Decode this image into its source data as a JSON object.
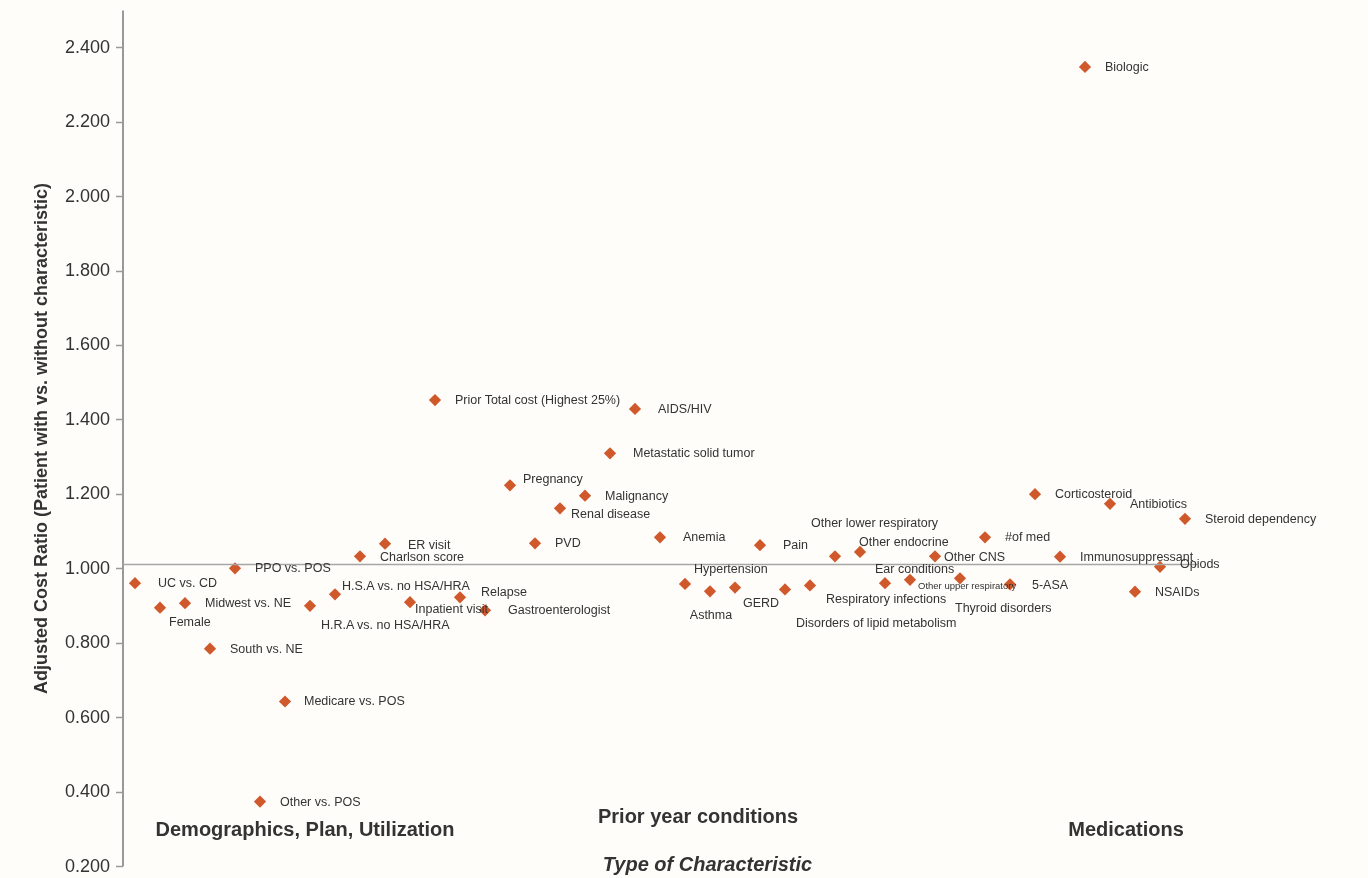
{
  "chart_data": {
    "type": "scatter",
    "xlabel": "Type of Characteristic",
    "ylabel": "Adjusted Cost Ratio (Patient with vs. without characteristic)",
    "categories": [
      null,
      null,
      null,
      null,
      null,
      null,
      null,
      null,
      null,
      null,
      null,
      null,
      null,
      null,
      null,
      null,
      null,
      null,
      null,
      null,
      null,
      null,
      null,
      null,
      null,
      null,
      null,
      null,
      null,
      null,
      null,
      null,
      null,
      null,
      null,
      null,
      null,
      null,
      null,
      null,
      null,
      null,
      null
    ],
    "values": [
      0.96,
      0.894,
      0.906,
      0.784,
      1.0,
      0.373,
      0.642,
      0.899,
      0.93,
      1.032,
      1.066,
      0.909,
      1.452,
      0.922,
      0.887,
      1.223,
      1.067,
      1.161,
      1.195,
      1.309,
      1.428,
      1.083,
      0.958,
      0.938,
      0.948,
      1.062,
      0.943,
      0.954,
      1.032,
      1.044,
      0.96,
      0.969,
      1.032,
      0.973,
      1.083,
      0.957,
      1.199,
      1.031,
      2.347,
      1.173,
      0.937,
      1.004,
      1.133
    ],
    "color": "#d0592c",
    "marker": "diamond",
    "grid": false,
    "tick_labels": "y",
    "ylim": [
      0.2,
      2.5
    ],
    "yticks": [
      {
        "value": 0.2,
        "label": "0.200"
      },
      {
        "value": 0.4,
        "label": "0.400"
      },
      {
        "value": 0.6,
        "label": "0.600"
      },
      {
        "value": 0.8,
        "label": "0.800"
      },
      {
        "value": 1.0,
        "label": "1.000"
      },
      {
        "value": 1.2,
        "label": "1.200"
      },
      {
        "value": 1.4,
        "label": "1.400"
      },
      {
        "value": 1.6,
        "label": "1.600"
      },
      {
        "value": 1.8,
        "label": "1.800"
      },
      {
        "value": 2.0,
        "label": "2.000"
      },
      {
        "value": 2.2,
        "label": "2.200"
      },
      {
        "value": 2.4,
        "label": "2.400"
      }
    ],
    "ref_lines": [
      {
        "axis": "y",
        "value": 1.01,
        "color": "#a6a6a6"
      }
    ],
    "annotations": [
      "UC vs. CD",
      "Female",
      "Midwest vs. NE",
      "South vs. NE",
      "PPO vs. POS",
      "Other vs. POS",
      "Medicare vs. POS",
      "H.R.A vs. no HSA/HRA",
      "H.S.A vs. no HSA/HRA",
      "Charlson score",
      "ER visit",
      "Inpatient visit",
      "Prior Total cost (Highest 25%)",
      "Relapse",
      "Gastroenterologist",
      "Pregnancy",
      "PVD",
      "Renal disease",
      "Malignancy",
      "Metastatic solid tumor",
      "AIDS/HIV",
      "Anemia",
      "Hypertension",
      "Asthma",
      "GERD",
      "Pain",
      "Disorders of lipid metabolism",
      "Respiratory infections",
      "Other lower respiratory",
      "Other endocrine",
      "Ear conditions",
      "Other upper respiratory",
      "Other CNS",
      "Thyroid disorders",
      "#of med",
      "5-ASA",
      "Corticosteroid",
      "Immunosuppressant",
      "Biologic",
      "Antibiotics",
      "NSAIDs",
      "Opiods",
      "Steroid dependency",
      "Demographics, Plan, Utilization",
      "Prior year conditions",
      "Medications"
    ]
  }
}
